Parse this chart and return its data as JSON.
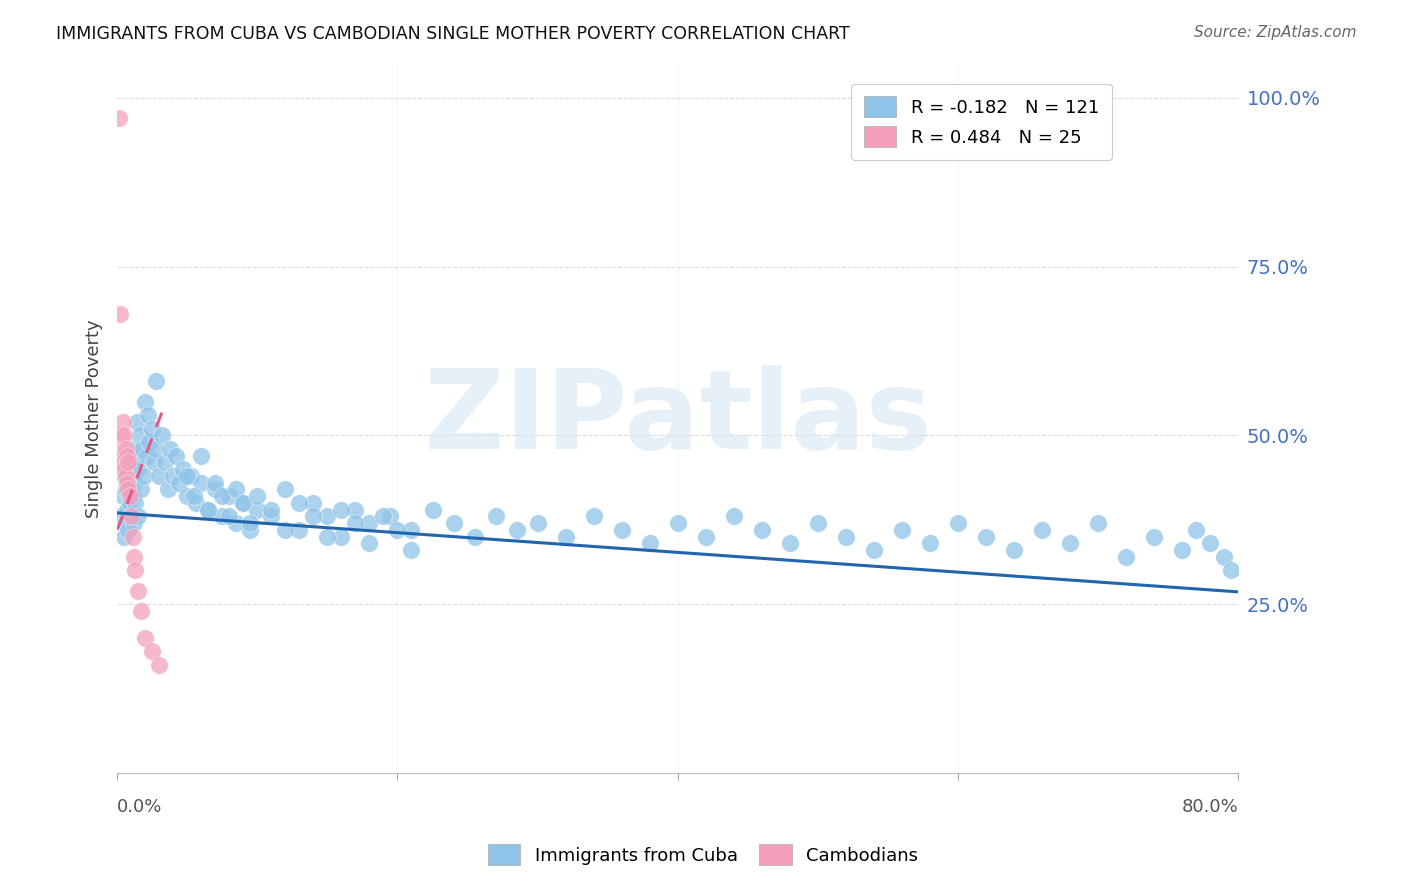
{
  "title": "IMMIGRANTS FROM CUBA VS CAMBODIAN SINGLE MOTHER POVERTY CORRELATION CHART",
  "source": "Source: ZipAtlas.com",
  "ylabel": "Single Mother Poverty",
  "watermark": "ZIPatlas",
  "legend_cuba_R": "-0.182",
  "legend_cuba_N": "121",
  "legend_camb_R": "0.484",
  "legend_camb_N": "25",
  "blue_color": "#8fc4e8",
  "pink_color": "#f4a0bb",
  "blue_line_color": "#2166ac",
  "pink_line_color": "#e05a8a",
  "background_color": "#ffffff",
  "grid_color": "#dddddd",
  "right_axis_color": "#4472c4",
  "xlim": [
    0.0,
    0.8
  ],
  "ylim": [
    0.0,
    1.05
  ],
  "cuba_x": [
    0.003,
    0.004,
    0.005,
    0.005,
    0.006,
    0.006,
    0.007,
    0.007,
    0.008,
    0.008,
    0.009,
    0.009,
    0.01,
    0.01,
    0.011,
    0.011,
    0.012,
    0.012,
    0.013,
    0.013,
    0.014,
    0.015,
    0.015,
    0.016,
    0.017,
    0.018,
    0.019,
    0.02,
    0.021,
    0.022,
    0.023,
    0.025,
    0.026,
    0.027,
    0.028,
    0.03,
    0.032,
    0.034,
    0.036,
    0.038,
    0.04,
    0.042,
    0.044,
    0.047,
    0.05,
    0.053,
    0.056,
    0.06,
    0.065,
    0.07,
    0.075,
    0.08,
    0.085,
    0.09,
    0.095,
    0.1,
    0.11,
    0.12,
    0.13,
    0.14,
    0.15,
    0.16,
    0.17,
    0.18,
    0.195,
    0.21,
    0.225,
    0.24,
    0.255,
    0.27,
    0.285,
    0.3,
    0.32,
    0.34,
    0.36,
    0.38,
    0.4,
    0.42,
    0.44,
    0.46,
    0.48,
    0.5,
    0.52,
    0.54,
    0.56,
    0.58,
    0.6,
    0.62,
    0.64,
    0.66,
    0.68,
    0.7,
    0.72,
    0.74,
    0.76,
    0.77,
    0.78,
    0.79,
    0.795,
    0.05,
    0.055,
    0.06,
    0.065,
    0.07,
    0.075,
    0.08,
    0.085,
    0.09,
    0.095,
    0.1,
    0.11,
    0.12,
    0.13,
    0.14,
    0.15,
    0.16,
    0.17,
    0.18,
    0.19,
    0.2,
    0.21
  ],
  "cuba_y": [
    0.38,
    0.41,
    0.35,
    0.44,
    0.37,
    0.42,
    0.39,
    0.45,
    0.36,
    0.43,
    0.4,
    0.47,
    0.38,
    0.44,
    0.41,
    0.48,
    0.37,
    0.43,
    0.4,
    0.46,
    0.52,
    0.38,
    0.45,
    0.5,
    0.42,
    0.48,
    0.44,
    0.55,
    0.47,
    0.53,
    0.49,
    0.51,
    0.46,
    0.48,
    0.58,
    0.44,
    0.5,
    0.46,
    0.42,
    0.48,
    0.44,
    0.47,
    0.43,
    0.45,
    0.41,
    0.44,
    0.4,
    0.43,
    0.39,
    0.42,
    0.38,
    0.41,
    0.37,
    0.4,
    0.36,
    0.39,
    0.38,
    0.42,
    0.36,
    0.4,
    0.38,
    0.35,
    0.39,
    0.37,
    0.38,
    0.36,
    0.39,
    0.37,
    0.35,
    0.38,
    0.36,
    0.37,
    0.35,
    0.38,
    0.36,
    0.34,
    0.37,
    0.35,
    0.38,
    0.36,
    0.34,
    0.37,
    0.35,
    0.33,
    0.36,
    0.34,
    0.37,
    0.35,
    0.33,
    0.36,
    0.34,
    0.37,
    0.32,
    0.35,
    0.33,
    0.36,
    0.34,
    0.32,
    0.3,
    0.44,
    0.41,
    0.47,
    0.39,
    0.43,
    0.41,
    0.38,
    0.42,
    0.4,
    0.37,
    0.41,
    0.39,
    0.36,
    0.4,
    0.38,
    0.35,
    0.39,
    0.37,
    0.34,
    0.38,
    0.36,
    0.33
  ],
  "camb_x": [
    0.001,
    0.002,
    0.002,
    0.003,
    0.003,
    0.004,
    0.004,
    0.005,
    0.005,
    0.006,
    0.006,
    0.007,
    0.007,
    0.008,
    0.008,
    0.009,
    0.01,
    0.011,
    0.012,
    0.013,
    0.015,
    0.017,
    0.02,
    0.025,
    0.03
  ],
  "camb_y": [
    0.97,
    0.48,
    0.68,
    0.47,
    0.5,
    0.46,
    0.52,
    0.45,
    0.5,
    0.44,
    0.48,
    0.43,
    0.47,
    0.42,
    0.46,
    0.41,
    0.38,
    0.35,
    0.32,
    0.3,
    0.27,
    0.24,
    0.2,
    0.18,
    0.16
  ],
  "cuba_line_x": [
    0.0,
    0.8
  ],
  "cuba_line_y": [
    0.385,
    0.268
  ],
  "camb_line_x0": 0.0,
  "camb_line_x1": 0.033,
  "camb_line_y0": 0.36,
  "camb_line_y1": 0.54
}
